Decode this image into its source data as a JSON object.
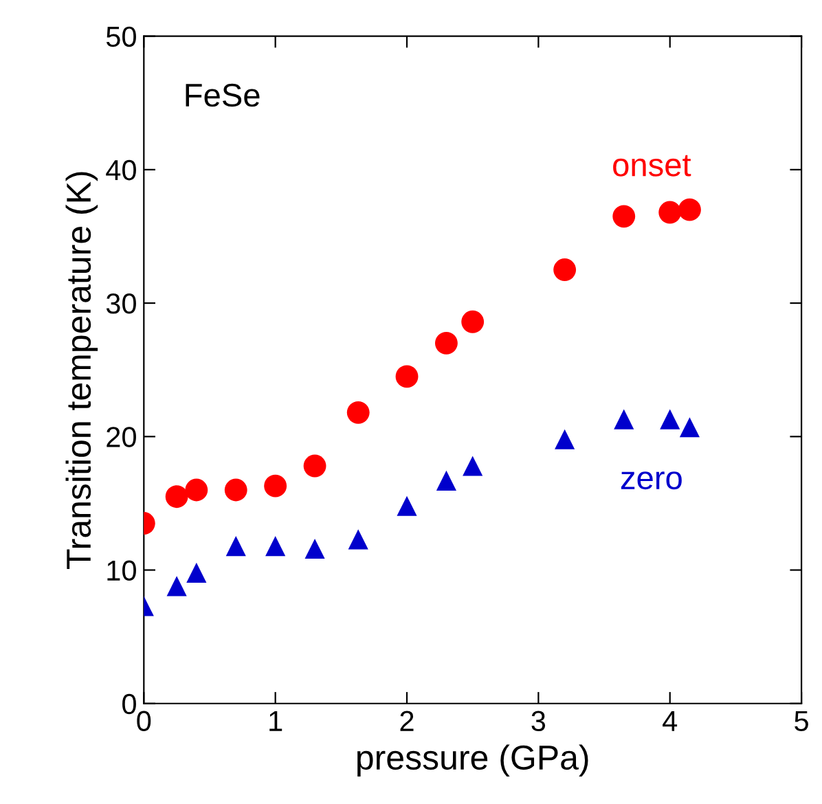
{
  "chart_data": {
    "type": "scatter",
    "xlabel": "pressure (GPa)",
    "ylabel": "Transition temperature (K)",
    "annotations": [
      "FeSe"
    ],
    "x": [
      0,
      0.25,
      0.4,
      0.7,
      1.0,
      1.3,
      1.63,
      2.0,
      2.3,
      2.5,
      3.2,
      3.65,
      4.0,
      4.15
    ],
    "series": [
      {
        "name": "onset",
        "color": "#ff0000",
        "marker": "circle",
        "values": [
          13.5,
          15.5,
          16,
          16,
          16.3,
          17.8,
          21.8,
          24.5,
          27,
          28.6,
          32.5,
          36.5,
          36.8,
          37
        ]
      },
      {
        "name": "zero",
        "color": "#0000cc",
        "marker": "triangle",
        "values": [
          7.3,
          8.8,
          9.8,
          11.8,
          11.8,
          11.6,
          12.3,
          14.8,
          16.7,
          17.8,
          19.8,
          21.3,
          21.3,
          20.7
        ]
      }
    ],
    "xlim": [
      0,
      5
    ],
    "ylim": [
      0,
      50
    ],
    "xticks": [
      0,
      1,
      2,
      3,
      4,
      5
    ],
    "yticks": [
      0,
      10,
      20,
      30,
      40,
      50
    ],
    "grid": false,
    "legend": false
  }
}
